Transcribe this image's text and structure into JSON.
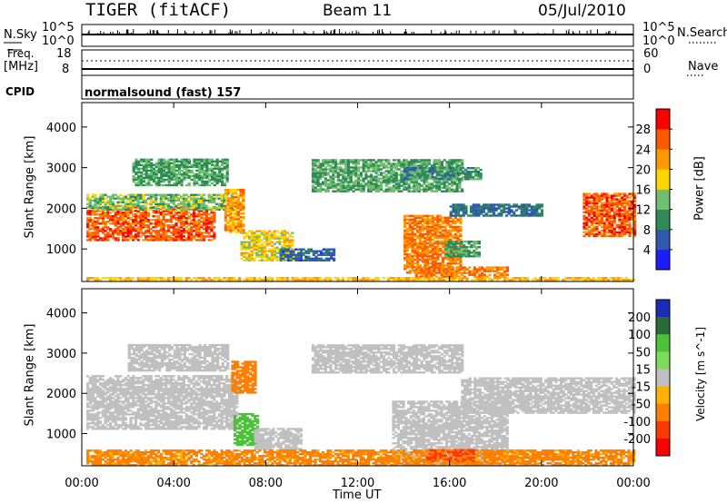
{
  "header": {
    "radar": "TIGER (fitACF)",
    "beam": "Beam 11",
    "date": "05/Jul/2010"
  },
  "strip_labels": {
    "nsky": "N.Sky",
    "nsearch": "N.Search",
    "freq_line1": "Freq.",
    "freq_line2": "[MHz]",
    "nave": "Nave",
    "cpid": "CPID",
    "mode": "normalsound (fast) 157",
    "nsky_ticks": [
      "10^5",
      "10^0"
    ],
    "nsearch_ticks": [
      "10^5",
      "10^0"
    ],
    "freq_ticks": [
      "18",
      "8"
    ],
    "nave_ticks": [
      "60",
      "0"
    ]
  },
  "colors": {
    "power": [
      "#1c1cff",
      "#3158b0",
      "#2e8b57",
      "#6fbf6f",
      "#ffd700",
      "#ff9900",
      "#ff5a00",
      "#ff0000"
    ],
    "velocity": [
      "#1c2cb8",
      "#2a6b3a",
      "#4cc238",
      "#7bdc5a",
      "#c0c0c0",
      "#ffb300",
      "#ff7f00",
      "#ff3a00",
      "#ff0000"
    ],
    "gray": "#bebebe"
  },
  "chart_data": [
    {
      "type": "heatmap",
      "name": "power",
      "xlabel": "Time UT",
      "ylabel": "Slant Range [km]",
      "x_ticks": [
        "00:00",
        "04:00",
        "08:00",
        "12:00",
        "16:00",
        "20:00",
        "00:00"
      ],
      "x_hours": [
        0,
        24
      ],
      "y_ticks": [
        1000,
        2000,
        3000,
        4000
      ],
      "ylim": [
        200,
        4600
      ],
      "colorbar_label": "Power [dB]",
      "colorbar_ticks": [
        4,
        8,
        12,
        16,
        20,
        24,
        28
      ],
      "colorbar_range": [
        0,
        32
      ],
      "regions": [
        {
          "t": [
            0.2,
            5.8
          ],
          "r": [
            1200,
            2050
          ],
          "p": 26
        },
        {
          "t": [
            0.2,
            6.5
          ],
          "r": [
            1950,
            2350
          ],
          "p": 14
        },
        {
          "t": [
            6.2,
            7.0
          ],
          "r": [
            1400,
            2450
          ],
          "p": 22
        },
        {
          "t": [
            6.9,
            9.2
          ],
          "r": [
            700,
            1450
          ],
          "p": 18
        },
        {
          "t": [
            8.6,
            11.0
          ],
          "r": [
            700,
            1000
          ],
          "p": 7
        },
        {
          "t": [
            2.2,
            6.3
          ],
          "r": [
            2550,
            3200
          ],
          "p": 12
        },
        {
          "t": [
            10.0,
            16.5
          ],
          "r": [
            2400,
            3200
          ],
          "p": 12
        },
        {
          "t": [
            14.0,
            17.3
          ],
          "r": [
            2700,
            3000
          ],
          "p": 10
        },
        {
          "t": [
            14.0,
            16.5
          ],
          "r": [
            400,
            1800
          ],
          "p": 24
        },
        {
          "t": [
            15.8,
            17.3
          ],
          "r": [
            800,
            1200
          ],
          "p": 12
        },
        {
          "t": [
            14.5,
            18.5
          ],
          "r": [
            300,
            550
          ],
          "p": 24
        },
        {
          "t": [
            16.0,
            20.0
          ],
          "r": [
            1800,
            2100
          ],
          "p": 8
        },
        {
          "t": [
            21.8,
            24.0
          ],
          "r": [
            1300,
            2350
          ],
          "p": 26
        },
        {
          "t": [
            0.2,
            24.0
          ],
          "r": [
            220,
            300
          ],
          "p": 20
        }
      ]
    },
    {
      "type": "heatmap",
      "name": "velocity",
      "xlabel": "Time UT",
      "ylabel": "Slant Range [km]",
      "x_ticks": [
        "00:00",
        "04:00",
        "08:00",
        "12:00",
        "16:00",
        "20:00",
        "00:00"
      ],
      "x_hours": [
        0,
        24
      ],
      "y_ticks": [
        1000,
        2000,
        3000,
        4000
      ],
      "ylim": [
        200,
        4600
      ],
      "colorbar_label": "Velocity [m s^-1]",
      "colorbar_ticks": [
        200,
        100,
        50,
        15,
        -15,
        -50,
        -100,
        -200
      ],
      "colorbar_range": [
        -250,
        250
      ],
      "regions": [
        {
          "t": [
            0.2,
            6.8
          ],
          "r": [
            1100,
            2100
          ],
          "v": 0
        },
        {
          "t": [
            0.2,
            6.8
          ],
          "r": [
            2050,
            2450
          ],
          "v": 0
        },
        {
          "t": [
            6.6,
            7.7
          ],
          "r": [
            700,
            1500
          ],
          "v": 60
        },
        {
          "t": [
            7.5,
            9.5
          ],
          "r": [
            600,
            1100
          ],
          "v": 0
        },
        {
          "t": [
            2.0,
            6.3
          ],
          "r": [
            2550,
            3200
          ],
          "v": 0
        },
        {
          "t": [
            10.0,
            16.5
          ],
          "r": [
            2500,
            3200
          ],
          "v": 0
        },
        {
          "t": [
            13.5,
            18.5
          ],
          "r": [
            200,
            1800
          ],
          "v": 0
        },
        {
          "t": [
            16.5,
            24.0
          ],
          "r": [
            1500,
            2400
          ],
          "v": 0
        },
        {
          "t": [
            0.2,
            24.0
          ],
          "r": [
            200,
            600
          ],
          "v": -40
        },
        {
          "t": [
            15.0,
            17.0
          ],
          "r": [
            300,
            600
          ],
          "v": -80
        },
        {
          "t": [
            6.5,
            7.5
          ],
          "r": [
            2000,
            2800
          ],
          "v": -60
        }
      ]
    }
  ]
}
